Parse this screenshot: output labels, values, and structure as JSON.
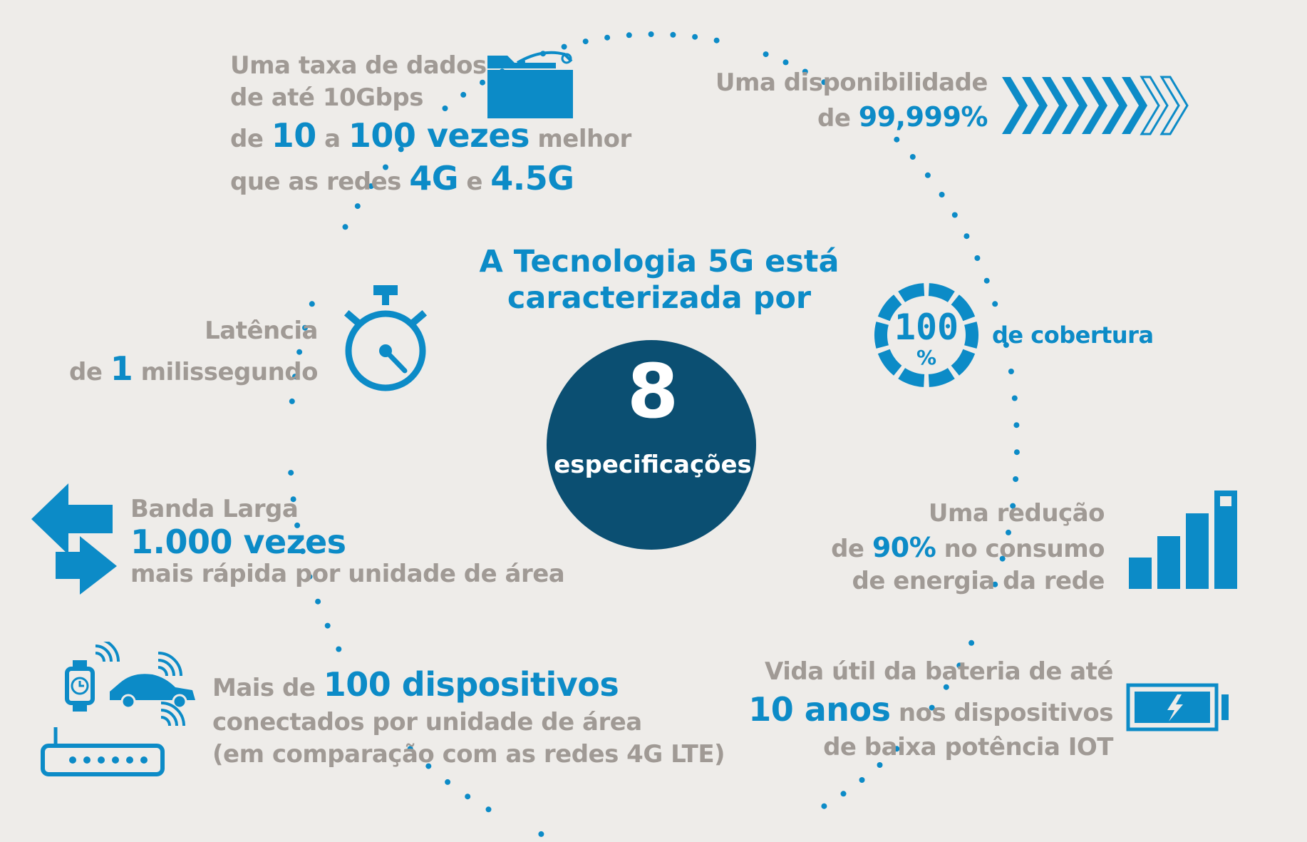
{
  "title": {
    "line1": "A Tecnologia 5G está",
    "line2": "caracterizada por"
  },
  "center": {
    "number": "8",
    "label": "especificações"
  },
  "colors": {
    "accent": "#0c8bc7",
    "dark_circle": "#0b4f72",
    "gray_text": "#a09a95",
    "background": "#eeece9"
  },
  "items": {
    "data_rate": {
      "icon": "folder-icon",
      "line1": "Uma taxa de dados",
      "line2": "de até 10Gbps",
      "l3_a": "de",
      "l3_b": "10",
      "l3_c": "a",
      "l3_d": "100 vezes",
      "l3_e": "melhor",
      "l4_a": "que as redes",
      "l4_b": "4G",
      "l4_c": "e",
      "l4_d": "4.5G"
    },
    "availability": {
      "icon": "chevrons-icon",
      "line1": "Uma disponibilidade",
      "l2_a": "de",
      "l2_b": "99,999%"
    },
    "coverage": {
      "icon": "percent-gauge-icon",
      "gauge_text": "100",
      "gauge_unit": "%",
      "label": "de cobertura"
    },
    "latency": {
      "icon": "stopwatch-icon",
      "line1": "Latência",
      "l2_a": "de",
      "l2_b": "1",
      "l2_c": "milissegundo"
    },
    "broadband": {
      "icon": "bidirectional-arrows-icon",
      "line1": "Banda Larga",
      "line2": "1.000 vezes",
      "line3": "mais rápida por unidade de área"
    },
    "energy": {
      "icon": "signal-bars-icon",
      "line1": "Uma redução",
      "l2_a": "de",
      "l2_b": "90%",
      "l2_c": "no consumo",
      "line3": "de energia da rede"
    },
    "devices": {
      "icon": "connected-devices-icon",
      "l1_a": "Mais de",
      "l1_b": "100 dispositivos",
      "line2": "conectados por unidade de área",
      "line3": "(em comparação com as redes 4G LTE)"
    },
    "battery": {
      "icon": "battery-icon",
      "line1": "Vida útil da bateria de até",
      "l2_a": "10 anos",
      "l2_b": "nos dispositivos",
      "line3": "de baixa potência IOT"
    }
  }
}
